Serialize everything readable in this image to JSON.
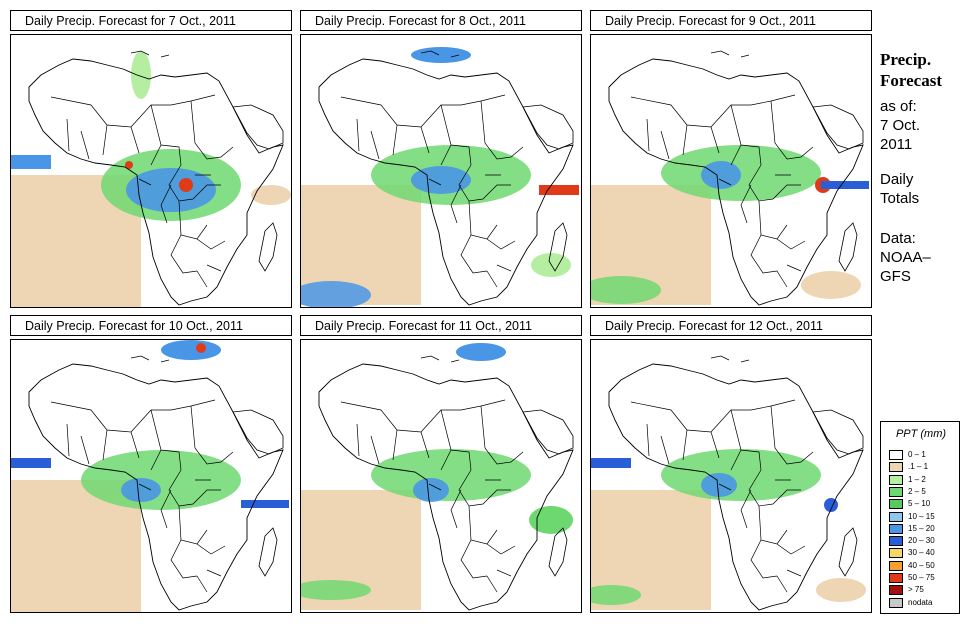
{
  "panels": [
    {
      "title": "Daily Precip. Forecast for  7 Oct., 2011"
    },
    {
      "title": "Daily Precip. Forecast for  8 Oct., 2011"
    },
    {
      "title": "Daily Precip. Forecast for  9 Oct., 2011"
    },
    {
      "title": "Daily Precip. Forecast for  10 Oct., 2011"
    },
    {
      "title": "Daily Precip. Forecast for  11 Oct., 2011"
    },
    {
      "title": "Daily Precip. Forecast for  12 Oct., 2011"
    }
  ],
  "side": {
    "heading1": "Precip.",
    "heading2": "Forecast",
    "asof1": "as of:",
    "asof2": "7 Oct.",
    "asof3": "2011",
    "daily1": "Daily",
    "daily2": "Totals",
    "data1": "Data:",
    "data2": "NOAA–",
    "data3": "GFS"
  },
  "legend": {
    "title": "PPT (mm)",
    "items": [
      {
        "label": "0 – 1",
        "color": "#ffffff"
      },
      {
        "label": ".1 – 1",
        "color": "#eed5b3"
      },
      {
        "label": "1 – 2",
        "color": "#b5eea0"
      },
      {
        "label": "2 – 5",
        "color": "#6ed870"
      },
      {
        "label": "5 – 10",
        "color": "#58c85f"
      },
      {
        "label": "10 – 15",
        "color": "#8cc8ee"
      },
      {
        "label": "15 – 20",
        "color": "#4a96e6"
      },
      {
        "label": "20 – 30",
        "color": "#2a5ed6"
      },
      {
        "label": "30 – 40",
        "color": "#f6d868"
      },
      {
        "label": "40 – 50",
        "color": "#f5a030"
      },
      {
        "label": "50 – 75",
        "color": "#e03a18"
      },
      {
        "label": "> 75",
        "color": "#a01010"
      },
      {
        "label": "nodata",
        "color": "#c8c8c8"
      }
    ]
  }
}
